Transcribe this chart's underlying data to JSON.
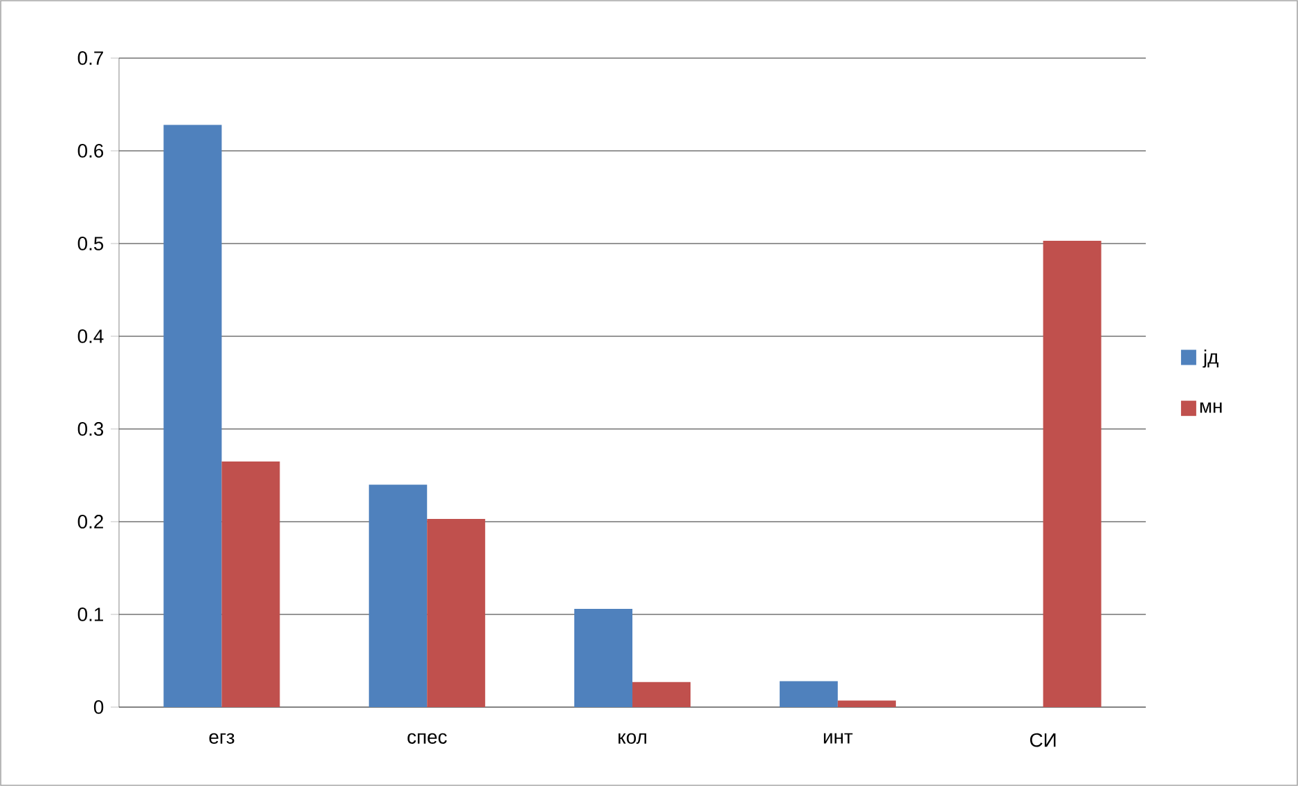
{
  "chart_data": {
    "type": "bar",
    "categories": [
      "егз",
      "спес",
      "кол",
      "инт",
      "СИ"
    ],
    "series": [
      {
        "name": "јд",
        "color": "#4f81bd",
        "values": [
          0.628,
          0.24,
          0.106,
          0.028,
          0
        ]
      },
      {
        "name": "мн",
        "color": "#c0504d",
        "values": [
          0.265,
          0.203,
          0.027,
          0.007,
          0.503
        ]
      }
    ],
    "ylim": [
      0,
      0.7
    ],
    "yticks": [
      0,
      0.1,
      0.2,
      0.3,
      0.4,
      0.5,
      0.6,
      0.7
    ],
    "grid": "y",
    "legend": "right"
  }
}
